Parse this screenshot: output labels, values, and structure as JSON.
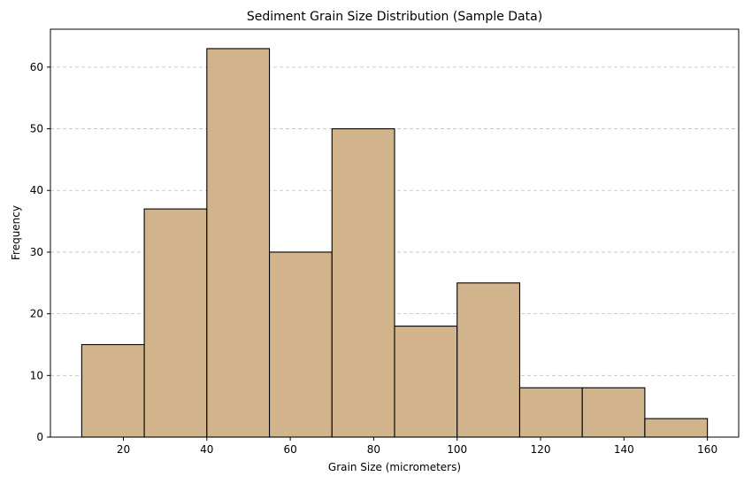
{
  "chart_data": {
    "type": "bar",
    "title": "Sediment Grain Size Distribution (Sample Data)",
    "xlabel": "Grain Size (micrometers)",
    "ylabel": "Frequency",
    "bins": [
      {
        "x0": 10,
        "x1": 25,
        "count": 15
      },
      {
        "x0": 25,
        "x1": 40,
        "count": 37
      },
      {
        "x0": 40,
        "x1": 55,
        "count": 63
      },
      {
        "x0": 55,
        "x1": 70,
        "count": 30
      },
      {
        "x0": 70,
        "x1": 85,
        "count": 50
      },
      {
        "x0": 85,
        "x1": 100,
        "count": 18
      },
      {
        "x0": 100,
        "x1": 115,
        "count": 25
      },
      {
        "x0": 115,
        "x1": 130,
        "count": 8
      },
      {
        "x0": 130,
        "x1": 145,
        "count": 8
      },
      {
        "x0": 145,
        "x1": 160,
        "count": 3
      }
    ],
    "xlim": [
      2.5,
      167.5
    ],
    "ylim": [
      0,
      66.15
    ],
    "xticks": [
      20,
      40,
      60,
      80,
      100,
      120,
      140,
      160
    ],
    "yticks": [
      0,
      10,
      20,
      30,
      40,
      50,
      60
    ],
    "grid": "y-dashed",
    "bar_color": "#d2b48c",
    "edge_color": "#000000"
  }
}
